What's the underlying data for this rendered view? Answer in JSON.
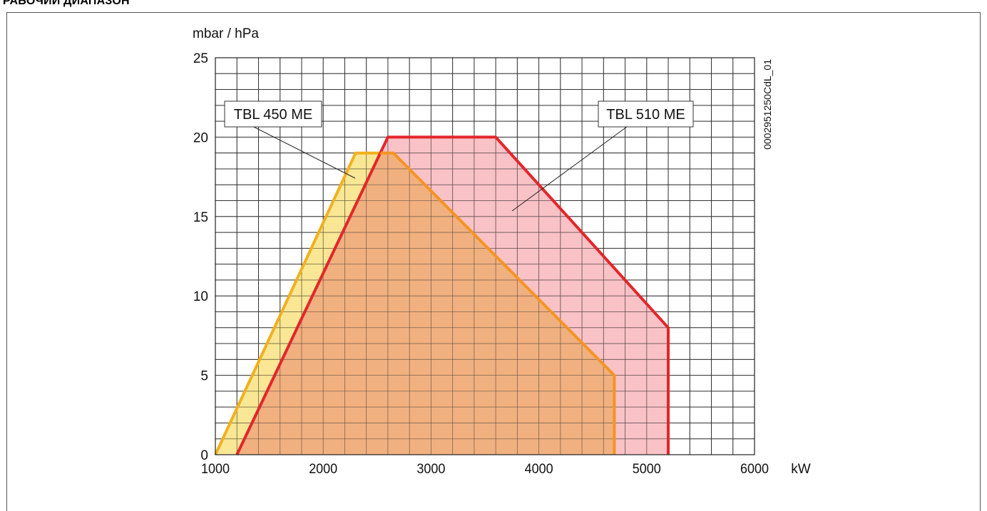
{
  "page": {
    "title": "РАБОЧИЙ ДИАПАЗОН",
    "code": "0002951250CdL_01"
  },
  "colors": {
    "tbl450_fill": "#f7e17a",
    "tbl450_line": "#f2b01e",
    "tbl510_fill": "#f6aeb4",
    "tbl510_line": "#e3262a",
    "overlap_fill": "#f0ae7a",
    "overlap_line": "#f49426"
  },
  "chart_data": {
    "type": "area",
    "xlabel": "kW",
    "ylabel": "mbar / hPa",
    "xlim": [
      1000,
      6000
    ],
    "ylim": [
      0,
      25
    ],
    "x_ticks": [
      "1000",
      "2000",
      "3000",
      "4000",
      "5000",
      "6000"
    ],
    "y_ticks": [
      "0",
      "5",
      "10",
      "15",
      "20",
      "25"
    ],
    "grid": true,
    "series": [
      {
        "name": "TBL 450 ME",
        "points": [
          [
            1000,
            0
          ],
          [
            2300,
            19
          ],
          [
            2650,
            19
          ],
          [
            4700,
            5
          ],
          [
            4700,
            0
          ]
        ]
      },
      {
        "name": "TBL 510 ME",
        "points": [
          [
            1200,
            0
          ],
          [
            2600,
            20
          ],
          [
            3600,
            20
          ],
          [
            5200,
            8
          ],
          [
            5200,
            0
          ]
        ]
      }
    ]
  }
}
